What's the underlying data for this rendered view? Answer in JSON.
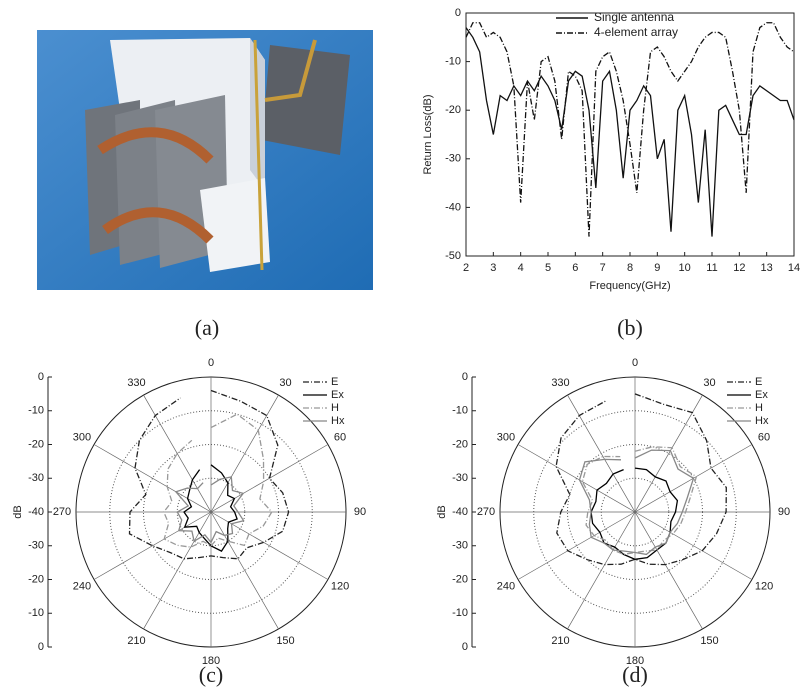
{
  "captions": [
    "(a)",
    "(b)",
    "(c)",
    "(d)"
  ],
  "chart_data": [
    {
      "type": "line",
      "xlabel": "Frequency(GHz)",
      "ylabel": "Return Loss(dB)",
      "x": [
        2,
        2.25,
        2.5,
        2.75,
        3,
        3.25,
        3.5,
        3.75,
        4,
        4.25,
        4.5,
        4.75,
        5,
        5.25,
        5.5,
        5.75,
        6,
        6.25,
        6.5,
        6.75,
        7,
        7.25,
        7.5,
        7.75,
        8,
        8.25,
        8.5,
        8.75,
        9,
        9.25,
        9.5,
        9.75,
        10,
        10.25,
        10.5,
        10.75,
        11,
        11.25,
        11.5,
        11.75,
        12,
        12.25,
        12.5,
        12.75,
        13,
        13.25,
        13.5,
        13.75,
        14
      ],
      "series": [
        {
          "name": "Single antenna",
          "color": "#111111",
          "style": "solid",
          "values": [
            -3,
            -5,
            -8,
            -18,
            -25,
            -17,
            -18,
            -15,
            -17,
            -14,
            -16,
            -13,
            -15,
            -18,
            -24,
            -14,
            -12,
            -13,
            -20,
            -36,
            -14,
            -12,
            -20,
            -34,
            -20,
            -18,
            -15,
            -17,
            -30,
            -26,
            -45,
            -20,
            -17,
            -25,
            -39,
            -24,
            -46,
            -20,
            -19,
            -22,
            -25,
            -25,
            -17,
            -15,
            -16,
            -17,
            -18,
            -18,
            -22
          ]
        },
        {
          "name": "4-element array",
          "color": "#111111",
          "style": "dashdot",
          "values": [
            -5,
            -2,
            -2,
            -5,
            -4,
            -5,
            -8,
            -15,
            -39,
            -14,
            -22,
            -10,
            -9,
            -14,
            -26,
            -12,
            -13,
            -16,
            -46,
            -12,
            -9,
            -8,
            -12,
            -18,
            -27,
            -37,
            -20,
            -8,
            -7,
            -9,
            -12,
            -14,
            -12,
            -10,
            -7,
            -5,
            -4,
            -4,
            -5,
            -12,
            -20,
            -37,
            -8,
            -3,
            -2,
            -2,
            -5,
            -7,
            -8
          ]
        }
      ],
      "xlim": [
        2,
        14
      ],
      "xticks": [
        2,
        3,
        4,
        5,
        6,
        7,
        8,
        9,
        10,
        11,
        12,
        13,
        14
      ],
      "ylim": [
        -50,
        0
      ],
      "yticks": [
        0,
        -10,
        -20,
        -30,
        -40,
        -50
      ],
      "legend": "top"
    },
    {
      "type": "polar",
      "rlabel": "dB",
      "theta": [
        0,
        15,
        30,
        45,
        60,
        75,
        90,
        105,
        120,
        135,
        150,
        165,
        180,
        195,
        210,
        225,
        240,
        255,
        270,
        285,
        300,
        315,
        330,
        345
      ],
      "thetaticks": [
        0,
        30,
        60,
        90,
        120,
        150,
        180,
        210,
        240,
        270,
        300,
        330
      ],
      "rlim": [
        -40,
        0
      ],
      "rticks": [
        0,
        -10,
        -20,
        -30,
        -40
      ],
      "series": [
        {
          "name": "E",
          "color": "#222222",
          "style": "dashdot",
          "values": [
            -4,
            -6,
            -7,
            -12,
            -20,
            -18,
            -17,
            -18,
            -22,
            -25,
            -24,
            -26,
            -27,
            -26,
            -24,
            -23,
            -20,
            -15,
            -16,
            -20,
            -14,
            -10,
            -7,
            -5
          ]
        },
        {
          "name": "Ex",
          "color": "#000000",
          "style": "solid",
          "values": [
            -26,
            -28,
            -30,
            -33,
            -32,
            -34,
            -33,
            -32,
            -34,
            -33,
            -30,
            -28,
            -30,
            -32,
            -33,
            -34,
            -31,
            -33,
            -32,
            -34,
            -32,
            -31,
            -29,
            -27
          ]
        },
        {
          "name": "H",
          "color": "#999999",
          "style": "dashdot",
          "values": [
            -15,
            -10,
            -12,
            -18,
            -22,
            -25,
            -22,
            -24,
            -27,
            -26,
            -30,
            -32,
            -30,
            -31,
            -28,
            -26,
            -24,
            -27,
            -26,
            -28,
            -25,
            -22,
            -20,
            -18
          ]
        },
        {
          "name": "Hx",
          "color": "#888888",
          "style": "solid",
          "values": [
            -32,
            -30,
            -28,
            -31,
            -29,
            -33,
            -32,
            -30,
            -33,
            -31,
            -32,
            -34,
            -31,
            -33,
            -30,
            -32,
            -29,
            -31,
            -30,
            -33,
            -28,
            -30,
            -32,
            -31
          ]
        }
      ],
      "legend": "upper right"
    },
    {
      "type": "polar",
      "rlabel": "dB",
      "theta": [
        0,
        15,
        30,
        45,
        60,
        75,
        90,
        105,
        120,
        135,
        150,
        165,
        180,
        195,
        210,
        225,
        240,
        255,
        270,
        285,
        300,
        315,
        330,
        345
      ],
      "thetaticks": [
        0,
        30,
        60,
        90,
        120,
        150,
        180,
        210,
        240,
        270,
        300,
        330
      ],
      "rlim": [
        -40,
        0
      ],
      "rticks": [
        0,
        -10,
        -20,
        -30,
        -40
      ],
      "series": [
        {
          "name": "E",
          "color": "#222222",
          "style": "dashdot",
          "values": [
            -5,
            -7,
            -6,
            -10,
            -14,
            -12,
            -13,
            -15,
            -17,
            -20,
            -22,
            -24,
            -26,
            -24,
            -22,
            -20,
            -17,
            -16,
            -18,
            -20,
            -13,
            -9,
            -7,
            -6
          ]
        },
        {
          "name": "Ex",
          "color": "#000000",
          "style": "solid",
          "values": [
            -27,
            -27,
            -28,
            -27,
            -28,
            -27,
            -28,
            -29,
            -28,
            -27,
            -27,
            -26,
            -26,
            -27,
            -28,
            -27,
            -28,
            -27,
            -27,
            -28,
            -27,
            -28,
            -27,
            -27
          ]
        },
        {
          "name": "H",
          "color": "#999999",
          "style": "dashdot",
          "values": [
            -22,
            -20,
            -18,
            -21,
            -19,
            -23,
            -25,
            -26,
            -27,
            -28,
            -27,
            -28,
            -28,
            -27,
            -27,
            -28,
            -26,
            -25,
            -26,
            -27,
            -22,
            -20,
            -21,
            -23
          ]
        },
        {
          "name": "Hx",
          "color": "#888888",
          "style": "solid",
          "values": [
            -24,
            -21,
            -19,
            -22,
            -20,
            -24,
            -26,
            -27,
            -28,
            -27,
            -28,
            -27,
            -28,
            -28,
            -27,
            -27,
            -25,
            -26,
            -27,
            -26,
            -21,
            -19,
            -22,
            -24
          ]
        }
      ],
      "legend": "upper right"
    }
  ]
}
